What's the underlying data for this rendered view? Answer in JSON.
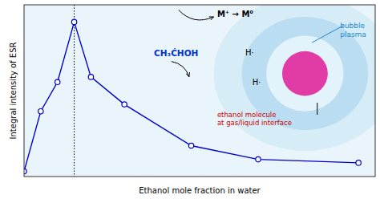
{
  "chart_data": {
    "type": "line",
    "xlabel": "Ethanol mole fraction in water",
    "ylabel": "Integral intensity of ESR",
    "x": [
      0.0,
      0.05,
      0.1,
      0.15,
      0.2,
      0.3,
      0.5,
      0.7,
      1.0
    ],
    "series": [
      {
        "color": "#0000cc",
        "marker": "circle",
        "values": [
          0.03,
          0.38,
          0.55,
          0.9,
          0.58,
          0.42,
          0.18,
          0.1,
          0.08
        ]
      }
    ],
    "xlim": [
      0.0,
      1.05
    ],
    "ylim": [
      0.0,
      1.0
    ],
    "xticks": [],
    "yticks": [],
    "tick_labels": false,
    "grid": false,
    "annotations": [
      {
        "type": "vline",
        "x": 0.15,
        "line_style": "dotted",
        "color": "#000000"
      },
      {
        "text": "bubble\nplasma",
        "color": "#2288cc"
      },
      {
        "text": "M⁺ → M⁰",
        "color": "#000000"
      },
      {
        "text": "H·",
        "color": "#000000"
      },
      {
        "text": "H·",
        "color": "#000000"
      },
      {
        "text": "CH₃ĊHOH",
        "color": "#0033cc"
      },
      {
        "text": "ethanol molecule\nat gas/liquid interface",
        "color": "#cc0000"
      }
    ]
  }
}
